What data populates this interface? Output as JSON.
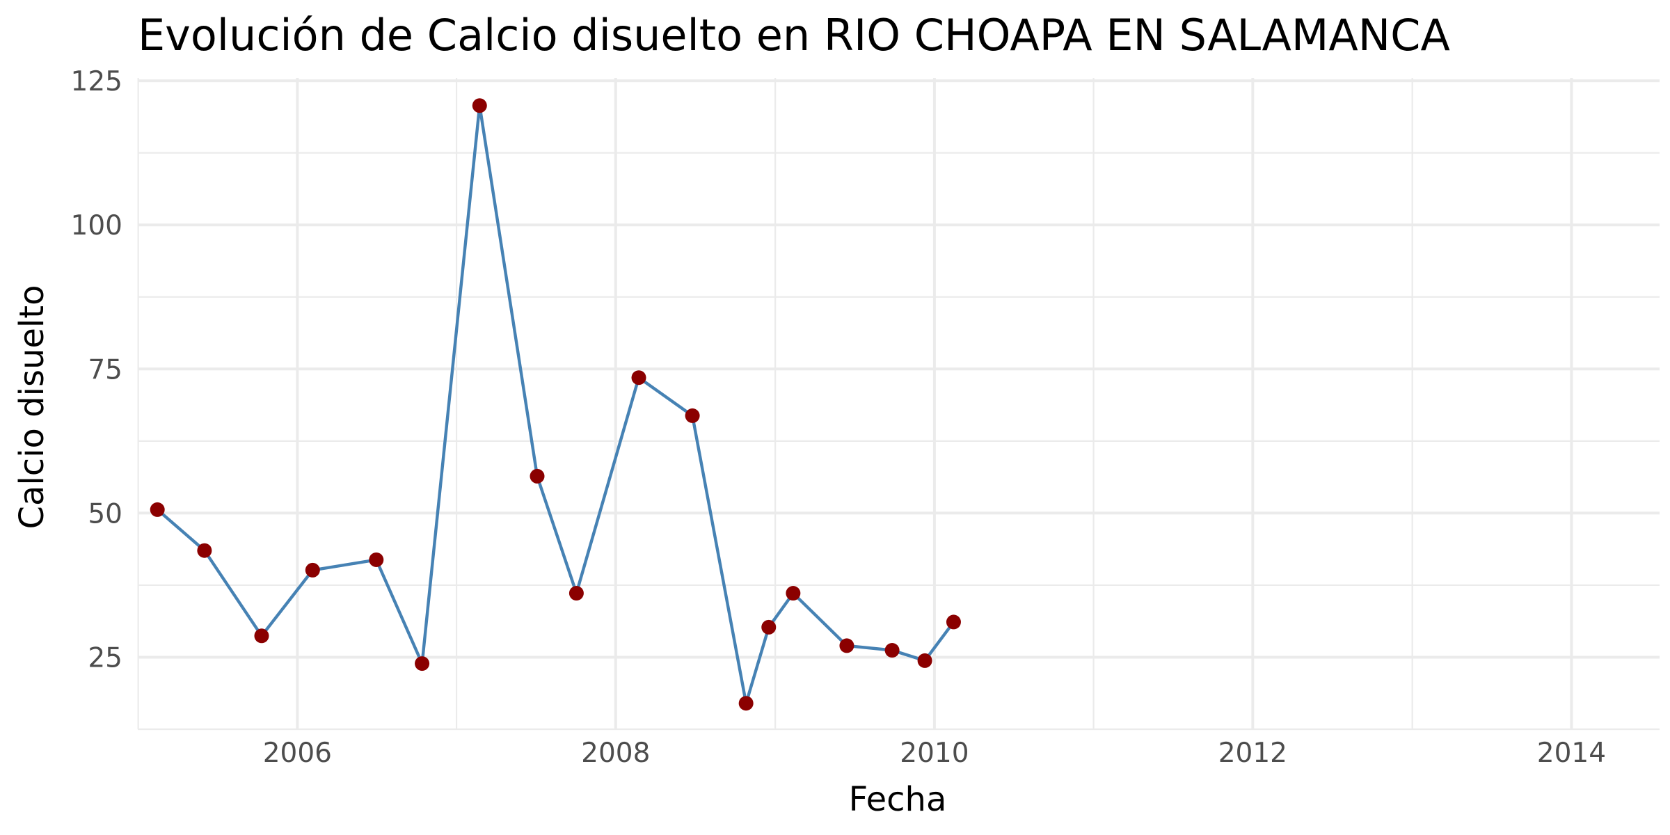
{
  "chart_data": {
    "type": "line",
    "title": "Evolución de Calcio disuelto en RIO CHOAPA EN SALAMANCA",
    "xlabel": "Fecha",
    "ylabel": "Calcio disuelto",
    "x_ticks": [
      "2006",
      "2008",
      "2010",
      "2012",
      "2014"
    ],
    "y_ticks": [
      "25",
      "50",
      "75",
      "100",
      "125"
    ],
    "xlim": [
      "2004-12-31",
      "2014-07-22"
    ],
    "ylim": [
      12.5,
      125.5
    ],
    "grid": true,
    "line_color": "#4682b4",
    "point_color": "#8b0000",
    "series": [
      {
        "x": [
          "2005-02-14",
          "2005-06-02",
          "2005-10-11",
          "2006-02-05",
          "2006-07-01",
          "2006-10-14",
          "2007-02-23",
          "2007-07-05",
          "2007-10-03",
          "2008-02-23",
          "2008-06-25",
          "2008-10-26",
          "2008-12-17",
          "2009-02-11",
          "2009-06-14",
          "2009-09-26",
          "2009-12-10",
          "2010-02-14"
        ],
        "y": [
          50.6,
          43.5,
          28.7,
          40.1,
          41.9,
          23.9,
          120.7,
          56.4,
          36.1,
          73.5,
          66.9,
          17.0,
          30.2,
          36.1,
          27.0,
          26.2,
          24.4,
          31.1
        ]
      }
    ]
  }
}
